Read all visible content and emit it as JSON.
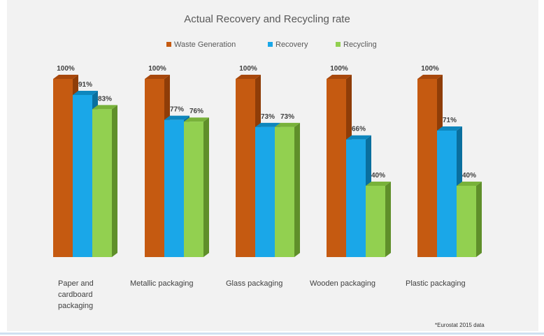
{
  "chart_data": {
    "type": "bar",
    "title": "Actual Recovery and Recycling rate",
    "categories": [
      [
        "Paper and",
        "cardboard",
        "packaging"
      ],
      [
        "Metallic packaging"
      ],
      [
        "Glass packaging"
      ],
      [
        "Wooden packaging"
      ],
      [
        "Plastic packaging"
      ]
    ],
    "series": [
      {
        "name": "Waste Generation",
        "values": [
          100,
          100,
          100,
          100,
          100
        ],
        "labels": [
          "100%",
          "100%",
          "100%",
          "100%",
          "100%"
        ],
        "color": "#c55a11",
        "side": "#8f3d08",
        "top": "#a8480c"
      },
      {
        "name": "Recovery",
        "values": [
          91,
          77,
          73,
          66,
          71
        ],
        "labels": [
          "91%",
          "77%",
          "73%",
          "66%",
          "71%"
        ],
        "color": "#1aa7e8",
        "side": "#0a6f9e",
        "top": "#0e86bd"
      },
      {
        "name": "Recycling",
        "values": [
          83,
          76,
          73,
          40,
          40
        ],
        "labels": [
          "83%",
          "76%",
          "73%",
          "40%",
          "40%"
        ],
        "color": "#92d050",
        "side": "#5f8f2a",
        "top": "#78b23a"
      }
    ],
    "ylim": [
      0,
      100
    ],
    "legend_position": "top",
    "grid": false,
    "note": "*Eurostat 2015 data"
  }
}
